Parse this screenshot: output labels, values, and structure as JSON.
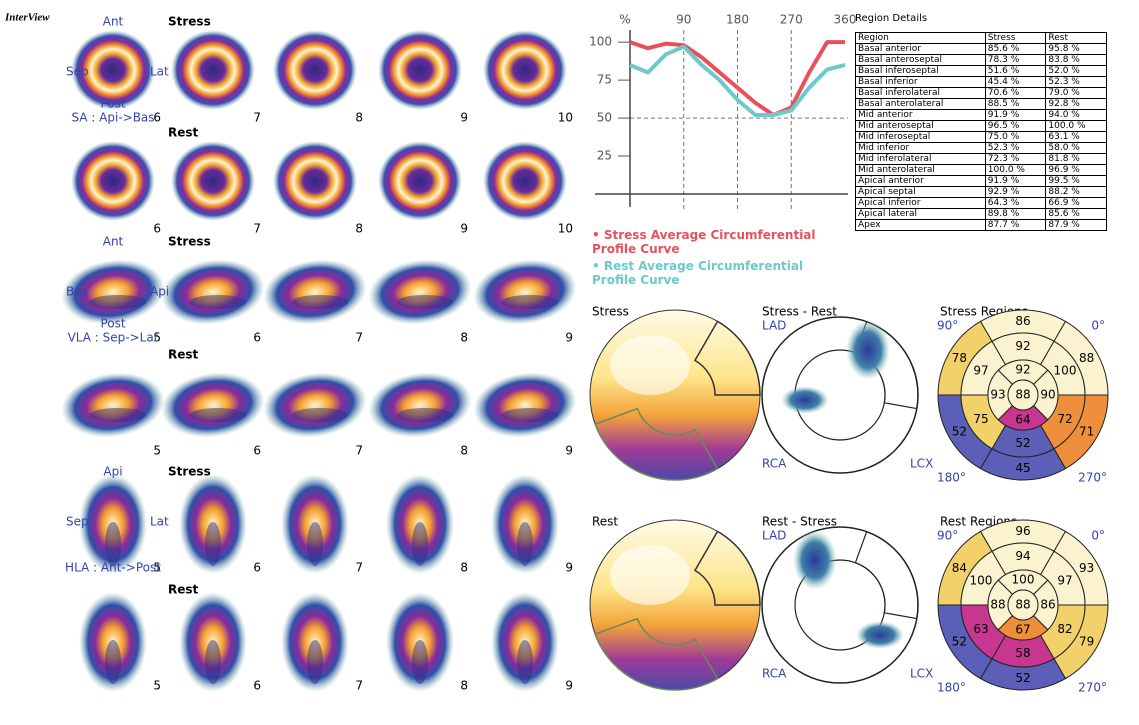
{
  "header": {
    "logo": "InterView"
  },
  "slice_rows": [
    {
      "label": "Stress",
      "numbers": [
        6,
        7,
        8,
        9,
        10
      ],
      "view": {
        "top": "Ant",
        "left": "Sep",
        "right": "Lat",
        "bottom": "Post",
        "axis": "SA : Api->Bas"
      }
    },
    {
      "label": "Rest",
      "numbers": [
        6,
        7,
        8,
        9,
        10
      ]
    },
    {
      "label": "Stress",
      "numbers": [
        5,
        6,
        7,
        8,
        9
      ],
      "view": {
        "top": "Ant",
        "left": "Bas",
        "right": "Api",
        "bottom": "Post",
        "axis": "VLA : Sep->Lat"
      }
    },
    {
      "label": "Rest",
      "numbers": [
        5,
        6,
        7,
        8,
        9
      ]
    },
    {
      "label": "Stress",
      "numbers": [
        5,
        6,
        7,
        8,
        9
      ],
      "view": {
        "top": "Api",
        "left": "Sep",
        "right": "Lat",
        "bottom": "Bas",
        "axis": "HLA : Ant->Post"
      }
    },
    {
      "label": "Rest",
      "numbers": [
        5,
        6,
        7,
        8,
        9
      ]
    }
  ],
  "chart_data": {
    "type": "line",
    "y_unit": "%",
    "x": [
      0,
      30,
      60,
      90,
      120,
      150,
      180,
      210,
      240,
      270,
      300,
      330,
      360
    ],
    "xlim": [
      0,
      365
    ],
    "ylim": [
      0,
      108
    ],
    "xticks": [
      90,
      180,
      270,
      360
    ],
    "yticks": [
      25,
      50,
      75,
      100
    ],
    "grid_x": [
      90,
      180,
      270
    ],
    "grid_y": [
      50
    ],
    "series": [
      {
        "name": "Stress  Average Circumferential Profile Curve",
        "color": "#e8505b",
        "values": [
          100,
          96,
          99,
          98,
          90,
          80,
          70,
          60,
          52,
          57,
          80,
          100,
          100
        ]
      },
      {
        "name": "Rest  Average Circumferential Profile Curve",
        "color": "#6cc9cc",
        "values": [
          85,
          80,
          92,
          97,
          85,
          75,
          62,
          52,
          52,
          55,
          70,
          82,
          85
        ]
      }
    ]
  },
  "region_table": {
    "title": "Region Details",
    "header": [
      "Region",
      "Stress",
      "Rest"
    ],
    "rows": [
      [
        "Basal anterior",
        "85.6 %",
        "95.8 %"
      ],
      [
        "Basal anteroseptal",
        "78.3 %",
        "83.8 %"
      ],
      [
        "Basal inferoseptal",
        "51.6 %",
        "52.0 %"
      ],
      [
        "Basal inferior",
        "45.4 %",
        "52.3 %"
      ],
      [
        "Basal inferolateral",
        "70.6 %",
        "79.0 %"
      ],
      [
        "Basal anterolateral",
        "88.5 %",
        "92.8 %"
      ],
      [
        "Mid anterior",
        "91.9 %",
        "94.0 %"
      ],
      [
        "Mid anteroseptal",
        "96.5 %",
        "100.0 %"
      ],
      [
        "Mid inferoseptal",
        "75.0 %",
        "63.1 %"
      ],
      [
        "Mid inferior",
        "52.3 %",
        "58.0 %"
      ],
      [
        "Mid inferolateral",
        "72.3 %",
        "81.8 %"
      ],
      [
        "Mid anterolateral",
        "100.0 %",
        "96.9 %"
      ],
      [
        "Apical anterior",
        "91.9 %",
        "99.5 %"
      ],
      [
        "Apical septal",
        "92.9 %",
        "88.2 %"
      ],
      [
        "Apical inferior",
        "64.3 %",
        "66.9 %"
      ],
      [
        "Apical lateral",
        "89.8 %",
        "85.6 %"
      ],
      [
        "Apex",
        "87.7 %",
        "87.9 %"
      ]
    ]
  },
  "polar_rows": [
    {
      "map": "Stress",
      "difference": {
        "title": "Stress - Rest",
        "labels": [
          "LAD",
          "RCA",
          "LCX"
        ]
      },
      "regions": {
        "title": "Stress Regions",
        "angles": [
          "90°",
          "0°",
          "180°",
          "270°"
        ],
        "basal": [
          86,
          88,
          71,
          45,
          52,
          78
        ],
        "mid": [
          92,
          100,
          72,
          52,
          75,
          97
        ],
        "apical": [
          92,
          90,
          64,
          93
        ],
        "apex": 88
      }
    },
    {
      "map": "Rest",
      "difference": {
        "title": "Rest - Stress",
        "labels": [
          "LAD",
          "RCA",
          "LCX"
        ]
      },
      "regions": {
        "title": "Rest Regions",
        "angles": [
          "90°",
          "0°",
          "180°",
          "270°"
        ],
        "basal": [
          96,
          93,
          79,
          52,
          52,
          84
        ],
        "mid": [
          94,
          97,
          82,
          58,
          63,
          100
        ],
        "apical": [
          100,
          86,
          67,
          88
        ],
        "apex": 88
      }
    }
  ]
}
